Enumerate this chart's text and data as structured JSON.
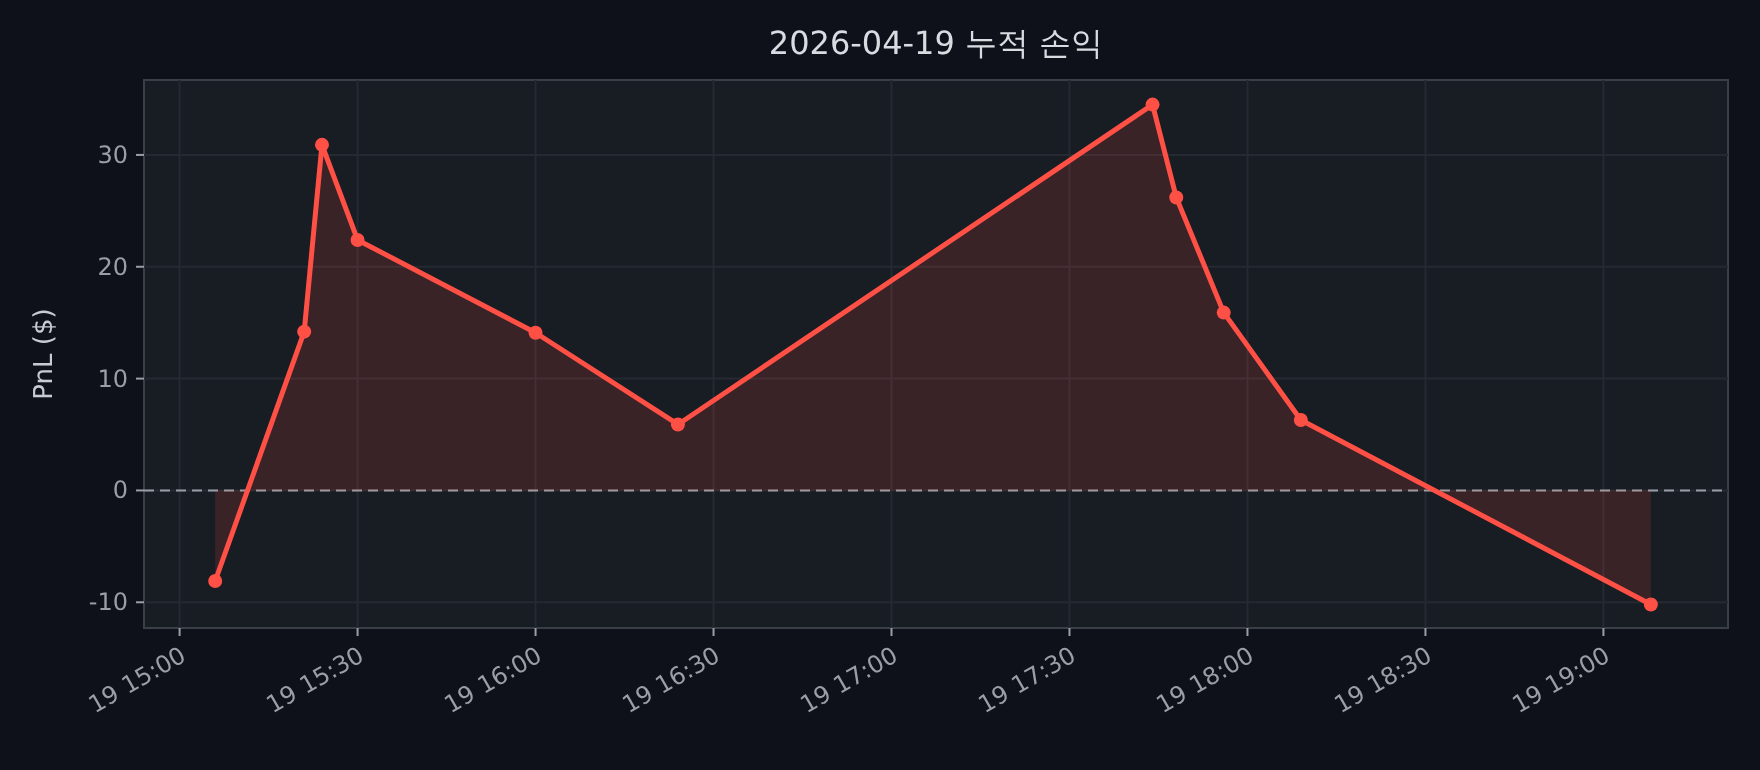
{
  "chart_data": {
    "type": "area",
    "title": "2026-04-19 누적 손익",
    "ylabel": "PnL ($)",
    "x": [
      "2026-04-19T15:06",
      "2026-04-19T15:21",
      "2026-04-19T15:24",
      "2026-04-19T15:30",
      "2026-04-19T16:00",
      "2026-04-19T16:24",
      "2026-04-19T17:44",
      "2026-04-19T17:48",
      "2026-04-19T17:56",
      "2026-04-19T18:09",
      "2026-04-19T19:08"
    ],
    "series": [
      {
        "color": "#ff5046",
        "values": [
          -8.1,
          14.2,
          30.9,
          22.4,
          14.1,
          5.9,
          34.5,
          26.2,
          15.9,
          6.3,
          -10.2
        ]
      }
    ],
    "xlim": [
      "2026-04-19T14:54",
      "2026-04-19T19:21"
    ],
    "xticks": [
      {
        "value": "2026-04-19T15:00",
        "label": "19 15:00"
      },
      {
        "value": "2026-04-19T15:30",
        "label": "19 15:30"
      },
      {
        "value": "2026-04-19T16:00",
        "label": "19 16:00"
      },
      {
        "value": "2026-04-19T16:30",
        "label": "19 16:30"
      },
      {
        "value": "2026-04-19T17:00",
        "label": "19 17:00"
      },
      {
        "value": "2026-04-19T17:30",
        "label": "19 17:30"
      },
      {
        "value": "2026-04-19T18:00",
        "label": "19 18:00"
      },
      {
        "value": "2026-04-19T18:30",
        "label": "19 18:30"
      },
      {
        "value": "2026-04-19T19:00",
        "label": "19 19:00"
      }
    ],
    "ylim": [
      -12.3,
      36.7
    ],
    "yticks": [
      -10,
      0,
      10,
      20,
      30
    ],
    "ref_lines": [
      {
        "axis": "y",
        "value": 0,
        "color": "#9a9ea6",
        "line_style": "dashed"
      }
    ],
    "grid": true,
    "marker": "circle",
    "line_style": "solid"
  }
}
